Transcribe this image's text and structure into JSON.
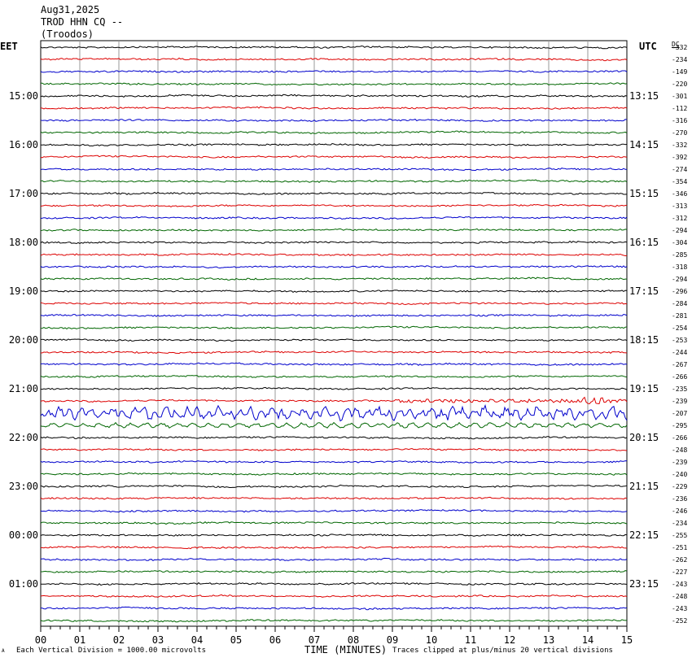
{
  "header": {
    "date": "Aug31,2025",
    "station": "TROD HHN CQ --",
    "location": "(Troodos)"
  },
  "left_tz": "EET",
  "right_tz": "UTC",
  "dc_label": "DC",
  "footer": {
    "scale_note": "Each Vertical Division = 1000.00 microvolts",
    "xlabel": "TIME (MINUTES)",
    "clip_note": "Traces clipped at plus/minus 20 vertical divisions",
    "corner_mark": "A"
  },
  "colors": {
    "trace_cycle": [
      "#000000",
      "#dd0000",
      "#0000cc",
      "#006600"
    ],
    "grid": "#999999"
  },
  "chart_data": {
    "type": "line",
    "title": "TROD HHN CQ -- (Troodos)",
    "xlabel": "TIME (MINUTES)",
    "xlim": [
      0,
      15
    ],
    "x_ticks": [
      "00",
      "01",
      "02",
      "03",
      "04",
      "05",
      "06",
      "07",
      "08",
      "09",
      "10",
      "11",
      "12",
      "13",
      "14",
      "15"
    ],
    "left_hour_labels": [
      "15:00",
      "16:00",
      "17:00",
      "18:00",
      "19:00",
      "20:00",
      "21:00",
      "22:00",
      "23:00",
      "00:00",
      "01:00"
    ],
    "right_hour_labels": [
      "13:15",
      "14:15",
      "15:15",
      "16:15",
      "17:15",
      "18:15",
      "19:15",
      "20:15",
      "21:15",
      "22:15",
      "23:15"
    ],
    "dc_offsets": [
      -332,
      -234,
      -149,
      -220,
      -301,
      -112,
      -316,
      -270,
      -332,
      -392,
      -274,
      -354,
      -346,
      -313,
      -312,
      -294,
      -304,
      -285,
      -318,
      -294,
      -296,
      -284,
      -281,
      -254,
      -253,
      -244,
      -267,
      -266,
      -235,
      -239,
      -207,
      -295,
      -266,
      -248,
      -239,
      -240,
      -229,
      -236,
      -246,
      -234,
      -255,
      -251,
      -262,
      -227,
      -243,
      -248,
      -243,
      -252
    ],
    "trace_count": 48,
    "event": {
      "start_minute": 9.0,
      "peak_minute": 14.1,
      "rows_affected": [
        29,
        30,
        31
      ]
    }
  }
}
